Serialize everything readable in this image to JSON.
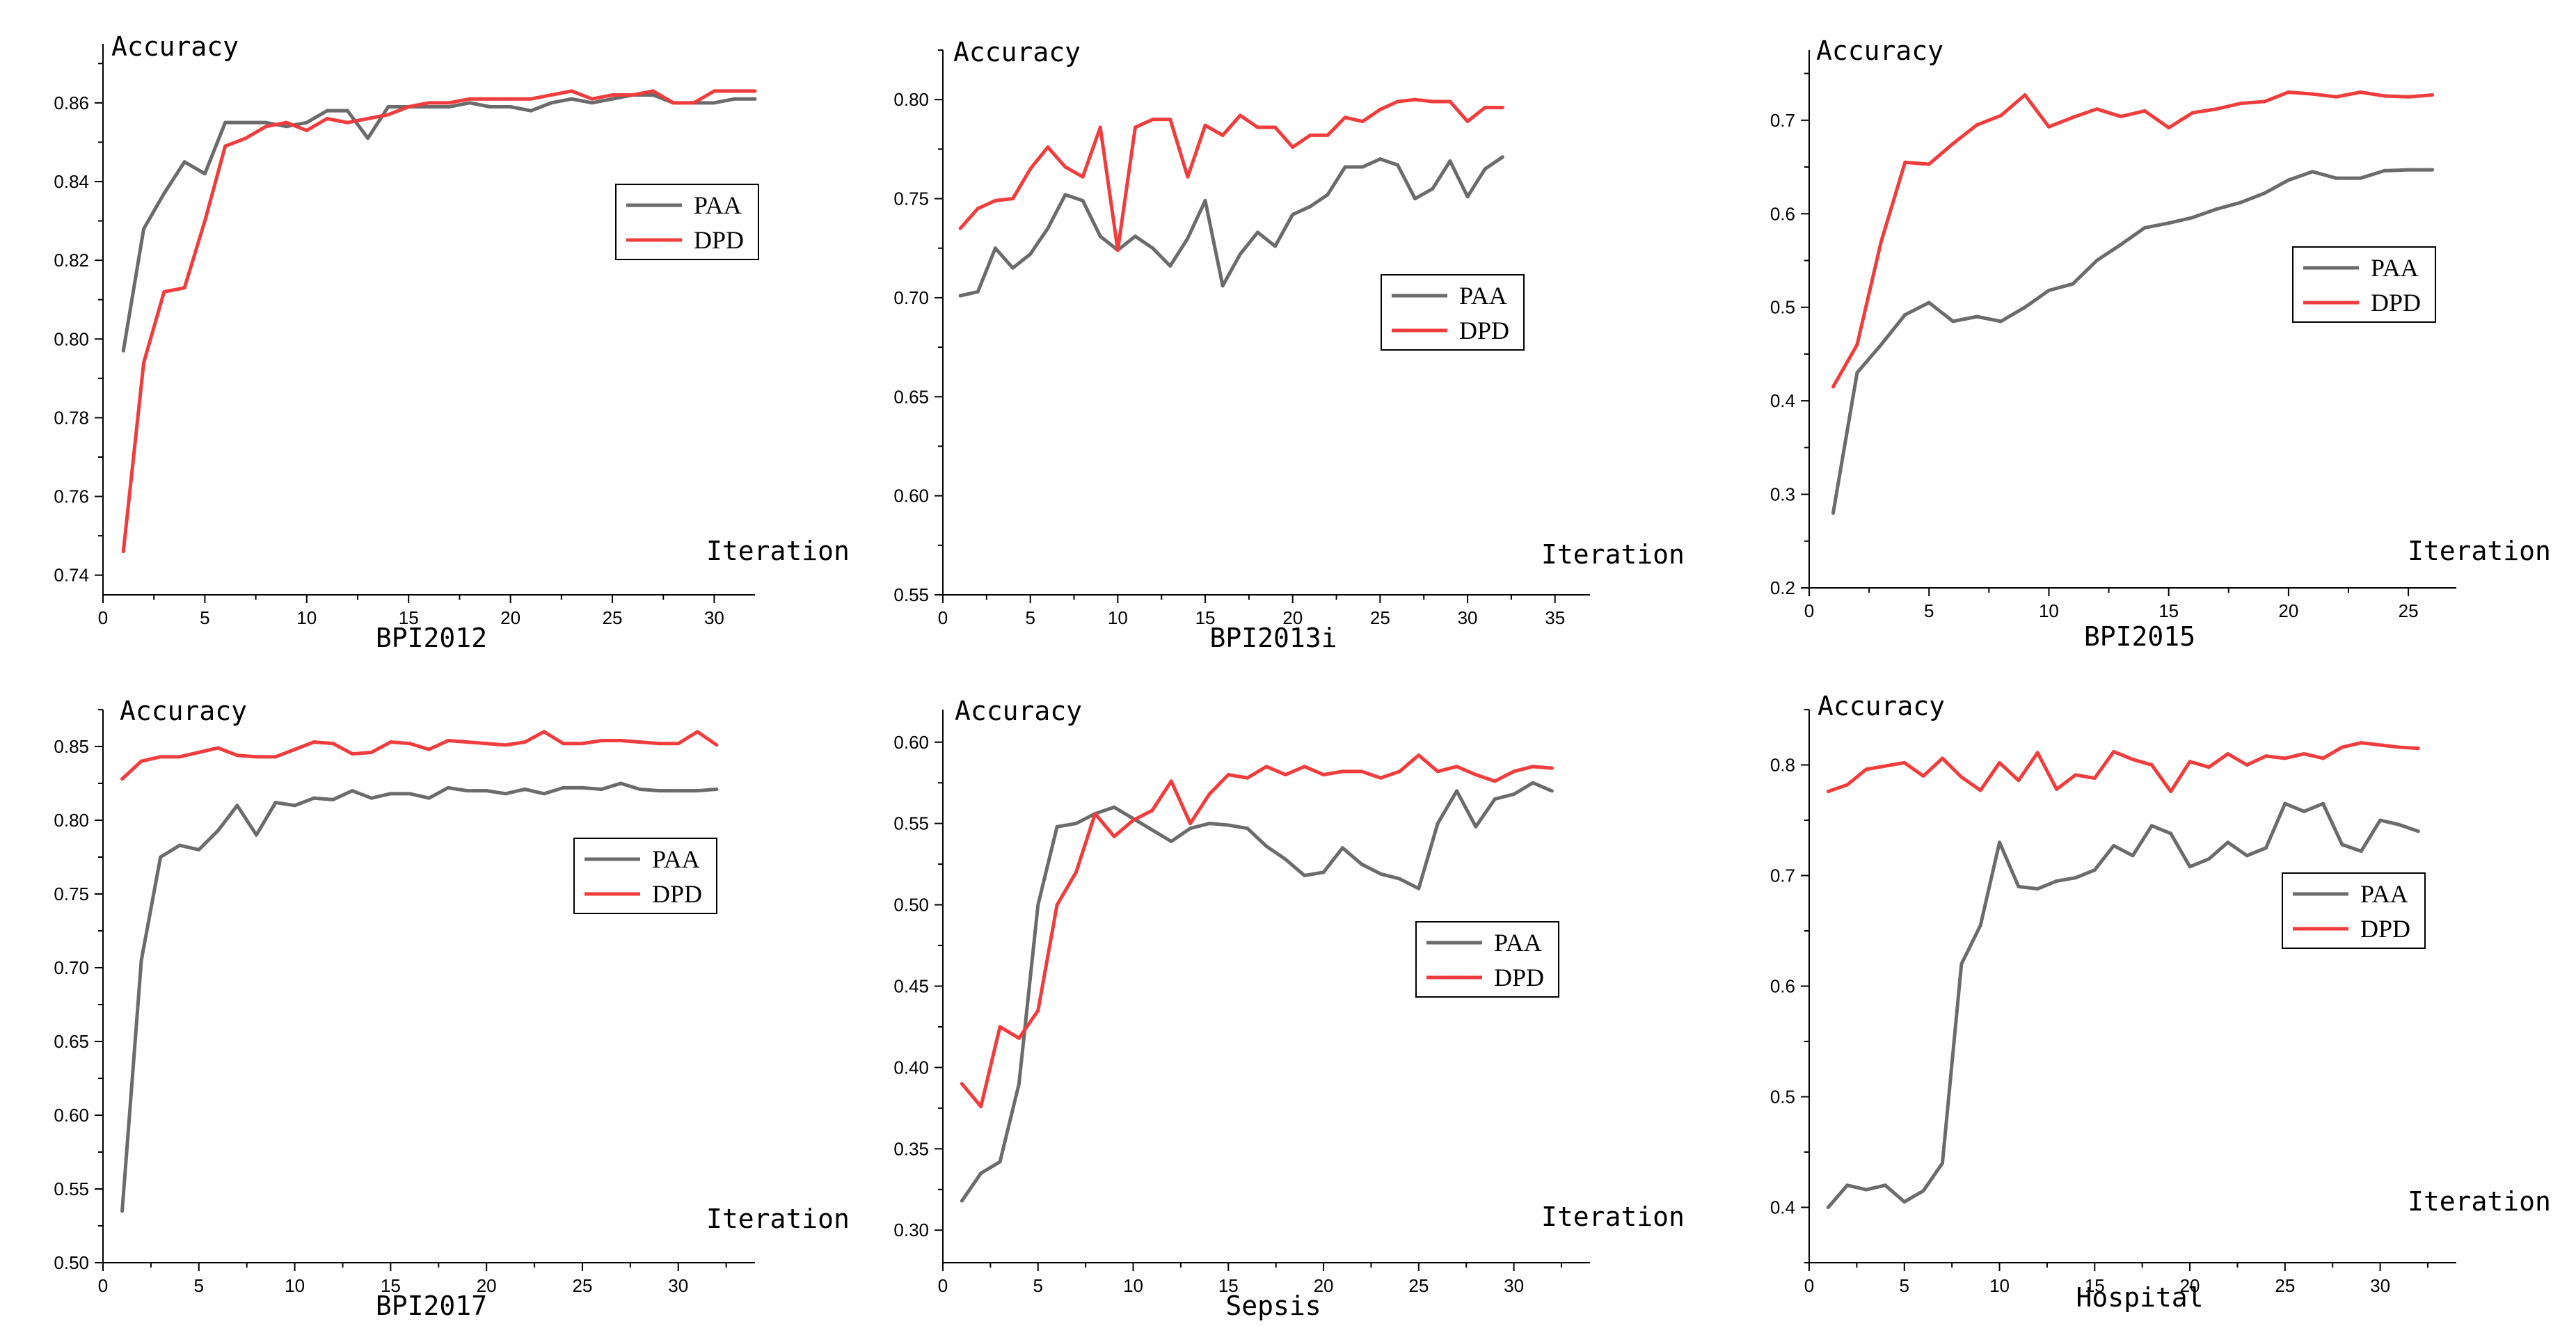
{
  "colors": {
    "PAA": "#6b6b6b",
    "DPD": "#f03c3c"
  },
  "chart_data": [
    {
      "type": "line",
      "title": "BPI2012",
      "xlabel": "Iteration",
      "ylabel": "Accuracy",
      "xlim": [
        0,
        32
      ],
      "ylim": [
        0.735,
        0.875
      ],
      "xticks": [
        0,
        5,
        10,
        15,
        20,
        25,
        30
      ],
      "yticks": [
        0.74,
        0.76,
        0.78,
        0.8,
        0.82,
        0.84,
        0.86
      ],
      "ytick_labels": [
        "0.74",
        "0.76",
        "0.78",
        "0.80",
        "0.82",
        "0.84",
        "0.86"
      ],
      "legend_position": "center-right",
      "x": [
        1,
        2,
        3,
        4,
        5,
        6,
        7,
        8,
        9,
        10,
        11,
        12,
        13,
        14,
        15,
        16,
        17,
        18,
        19,
        20,
        21,
        22,
        23,
        24,
        25,
        26,
        27,
        28,
        29,
        30,
        31,
        32
      ],
      "series": [
        {
          "name": "PAA",
          "values": [
            0.797,
            0.828,
            0.837,
            0.845,
            0.842,
            0.855,
            0.855,
            0.855,
            0.854,
            0.855,
            0.858,
            0.858,
            0.851,
            0.859,
            0.859,
            0.859,
            0.859,
            0.86,
            0.859,
            0.859,
            0.858,
            0.86,
            0.861,
            0.86,
            0.861,
            0.862,
            0.862,
            0.86,
            0.86,
            0.86,
            0.861,
            0.861
          ]
        },
        {
          "name": "DPD",
          "values": [
            0.746,
            0.794,
            0.812,
            0.813,
            0.83,
            0.849,
            0.851,
            0.854,
            0.855,
            0.853,
            0.856,
            0.855,
            0.856,
            0.857,
            0.859,
            0.86,
            0.86,
            0.861,
            0.861,
            0.861,
            0.861,
            0.862,
            0.863,
            0.861,
            0.862,
            0.862,
            0.863,
            0.86,
            0.86,
            0.863,
            0.863,
            0.863
          ]
        }
      ]
    },
    {
      "type": "line",
      "title": "BPI2013i",
      "xlabel": "Iteration",
      "ylabel": "Accuracy",
      "xlim": [
        0,
        37
      ],
      "ylim": [
        0.55,
        0.825
      ],
      "xticks": [
        0,
        5,
        10,
        15,
        20,
        25,
        30,
        35
      ],
      "yticks": [
        0.55,
        0.6,
        0.65,
        0.7,
        0.75,
        0.8
      ],
      "ytick_labels": [
        "0.55",
        "0.60",
        "0.65",
        "0.70",
        "0.75",
        "0.80"
      ],
      "legend_position": "center-right",
      "x": [
        1,
        2,
        3,
        4,
        5,
        6,
        7,
        8,
        9,
        10,
        11,
        12,
        13,
        14,
        15,
        16,
        17,
        18,
        19,
        20,
        21,
        22,
        23,
        24,
        25,
        26,
        27,
        28,
        29,
        30,
        31,
        32
      ],
      "series": [
        {
          "name": "PAA",
          "values": [
            0.701,
            0.703,
            0.725,
            0.715,
            0.722,
            0.735,
            0.752,
            0.749,
            0.731,
            0.724,
            0.731,
            0.725,
            0.716,
            0.73,
            0.749,
            0.706,
            0.722,
            0.733,
            0.726,
            0.742,
            0.746,
            0.752,
            0.766,
            0.766,
            0.77,
            0.767,
            0.75,
            0.755,
            0.769,
            0.751,
            0.765,
            0.771
          ]
        },
        {
          "name": "DPD",
          "values": [
            0.735,
            0.745,
            0.749,
            0.75,
            0.765,
            0.776,
            0.766,
            0.761,
            0.786,
            0.724,
            0.786,
            0.79,
            0.79,
            0.761,
            0.787,
            0.782,
            0.792,
            0.786,
            0.786,
            0.776,
            0.782,
            0.782,
            0.791,
            0.789,
            0.795,
            0.799,
            0.8,
            0.799,
            0.799,
            0.789,
            0.796,
            0.796
          ]
        }
      ]
    },
    {
      "type": "line",
      "title": "BPI2015",
      "xlabel": "Iteration",
      "ylabel": "Accuracy",
      "xlim": [
        0,
        27
      ],
      "ylim": [
        0.2,
        0.775
      ],
      "xticks": [
        0,
        5,
        10,
        15,
        20,
        25
      ],
      "yticks": [
        0.2,
        0.3,
        0.4,
        0.5,
        0.6,
        0.7
      ],
      "ytick_labels": [
        "0.2",
        "0.3",
        "0.4",
        "0.5",
        "0.6",
        "0.7"
      ],
      "legend_position": "right",
      "x": [
        1,
        2,
        3,
        4,
        5,
        6,
        7,
        8,
        9,
        10,
        11,
        12,
        13,
        14,
        15,
        16,
        17,
        18,
        19,
        20,
        21,
        22,
        23,
        24,
        25,
        26
      ],
      "series": [
        {
          "name": "PAA",
          "values": [
            0.28,
            0.43,
            0.46,
            0.492,
            0.505,
            0.485,
            0.49,
            0.485,
            0.5,
            0.518,
            0.525,
            0.55,
            0.567,
            0.585,
            0.59,
            0.596,
            0.605,
            0.612,
            0.622,
            0.636,
            0.645,
            0.638,
            0.638,
            0.646,
            0.647,
            0.647
          ]
        },
        {
          "name": "DPD",
          "values": [
            0.415,
            0.46,
            0.57,
            0.655,
            0.653,
            0.675,
            0.695,
            0.705,
            0.727,
            0.693,
            0.703,
            0.712,
            0.704,
            0.71,
            0.692,
            0.708,
            0.712,
            0.718,
            0.72,
            0.73,
            0.728,
            0.725,
            0.73,
            0.726,
            0.725,
            0.727
          ]
        }
      ]
    },
    {
      "type": "line",
      "title": "BPI2017",
      "xlabel": "Iteration",
      "ylabel": "Accuracy",
      "xlim": [
        0,
        34
      ],
      "ylim": [
        0.5,
        0.875
      ],
      "xticks": [
        0,
        5,
        10,
        15,
        20,
        25,
        30
      ],
      "yticks": [
        0.5,
        0.55,
        0.6,
        0.65,
        0.7,
        0.75,
        0.8,
        0.85
      ],
      "ytick_labels": [
        "0.50",
        "0.55",
        "0.60",
        "0.65",
        "0.70",
        "0.75",
        "0.80",
        "0.85"
      ],
      "legend_position": "center-right",
      "x": [
        1,
        2,
        3,
        4,
        5,
        6,
        7,
        8,
        9,
        10,
        11,
        12,
        13,
        14,
        15,
        16,
        17,
        18,
        19,
        20,
        21,
        22,
        23,
        24,
        25,
        26,
        27,
        28,
        29,
        30,
        31,
        32
      ],
      "series": [
        {
          "name": "PAA",
          "values": [
            0.535,
            0.705,
            0.775,
            0.783,
            0.78,
            0.793,
            0.81,
            0.79,
            0.812,
            0.81,
            0.815,
            0.814,
            0.82,
            0.815,
            0.818,
            0.818,
            0.815,
            0.822,
            0.82,
            0.82,
            0.818,
            0.821,
            0.818,
            0.822,
            0.822,
            0.821,
            0.825,
            0.821,
            0.82,
            0.82,
            0.82,
            0.821
          ]
        },
        {
          "name": "DPD",
          "values": [
            0.828,
            0.84,
            0.843,
            0.843,
            0.846,
            0.849,
            0.844,
            0.843,
            0.843,
            0.848,
            0.853,
            0.852,
            0.845,
            0.846,
            0.853,
            0.852,
            0.848,
            0.854,
            0.853,
            0.852,
            0.851,
            0.853,
            0.86,
            0.852,
            0.852,
            0.854,
            0.854,
            0.853,
            0.852,
            0.852,
            0.86,
            0.851
          ]
        }
      ]
    },
    {
      "type": "line",
      "title": "Sepsis",
      "xlabel": "Iteration",
      "ylabel": "Accuracy",
      "xlim": [
        0,
        34
      ],
      "ylim": [
        0.28,
        0.62
      ],
      "xticks": [
        0,
        5,
        10,
        15,
        20,
        25,
        30
      ],
      "yticks": [
        0.3,
        0.35,
        0.4,
        0.45,
        0.5,
        0.55,
        0.6
      ],
      "ytick_labels": [
        "0.30",
        "0.35",
        "0.40",
        "0.45",
        "0.50",
        "0.55",
        "0.60"
      ],
      "legend_position": "right",
      "x": [
        1,
        2,
        3,
        4,
        5,
        6,
        7,
        8,
        9,
        10,
        11,
        12,
        13,
        14,
        15,
        16,
        17,
        18,
        19,
        20,
        21,
        22,
        23,
        24,
        25,
        26,
        27,
        28,
        29,
        30,
        31,
        32
      ],
      "series": [
        {
          "name": "PAA",
          "values": [
            0.318,
            0.335,
            0.342,
            0.39,
            0.5,
            0.548,
            0.55,
            0.556,
            0.56,
            0.553,
            0.546,
            0.539,
            0.547,
            0.55,
            0.549,
            0.547,
            0.536,
            0.528,
            0.518,
            0.52,
            0.535,
            0.525,
            0.519,
            0.516,
            0.51,
            0.55,
            0.57,
            0.548,
            0.565,
            0.568,
            0.575,
            0.57
          ]
        },
        {
          "name": "DPD",
          "values": [
            0.39,
            0.376,
            0.425,
            0.418,
            0.435,
            0.5,
            0.52,
            0.556,
            0.542,
            0.552,
            0.558,
            0.576,
            0.55,
            0.568,
            0.58,
            0.578,
            0.585,
            0.58,
            0.585,
            0.58,
            0.582,
            0.582,
            0.578,
            0.582,
            0.592,
            0.582,
            0.585,
            0.58,
            0.576,
            0.582,
            0.585,
            0.584
          ]
        }
      ]
    },
    {
      "type": "line",
      "title": "Hospital",
      "xlabel": "Iteration",
      "ylabel": "Accuracy",
      "xlim": [
        0,
        34
      ],
      "ylim": [
        0.35,
        0.85
      ],
      "xticks": [
        0,
        5,
        10,
        15,
        20,
        25,
        30
      ],
      "yticks": [
        0.4,
        0.5,
        0.6,
        0.7,
        0.8
      ],
      "ytick_labels": [
        "0.4",
        "0.5",
        "0.6",
        "0.7",
        "0.8"
      ],
      "legend_position": "right",
      "x": [
        1,
        2,
        3,
        4,
        5,
        6,
        7,
        8,
        9,
        10,
        11,
        12,
        13,
        14,
        15,
        16,
        17,
        18,
        19,
        20,
        21,
        22,
        23,
        24,
        25,
        26,
        27,
        28,
        29,
        30,
        31,
        32
      ],
      "series": [
        {
          "name": "PAA",
          "values": [
            0.4,
            0.42,
            0.416,
            0.42,
            0.405,
            0.415,
            0.44,
            0.62,
            0.655,
            0.73,
            0.69,
            0.688,
            0.695,
            0.698,
            0.705,
            0.727,
            0.718,
            0.745,
            0.738,
            0.708,
            0.715,
            0.73,
            0.718,
            0.725,
            0.765,
            0.758,
            0.765,
            0.728,
            0.722,
            0.75,
            0.746,
            0.74
          ]
        },
        {
          "name": "DPD",
          "values": [
            0.776,
            0.782,
            0.796,
            0.799,
            0.802,
            0.79,
            0.806,
            0.789,
            0.777,
            0.802,
            0.786,
            0.811,
            0.778,
            0.791,
            0.788,
            0.812,
            0.805,
            0.8,
            0.776,
            0.803,
            0.798,
            0.81,
            0.8,
            0.808,
            0.806,
            0.81,
            0.806,
            0.816,
            0.82,
            0.818,
            0.816,
            0.815
          ]
        }
      ]
    }
  ]
}
